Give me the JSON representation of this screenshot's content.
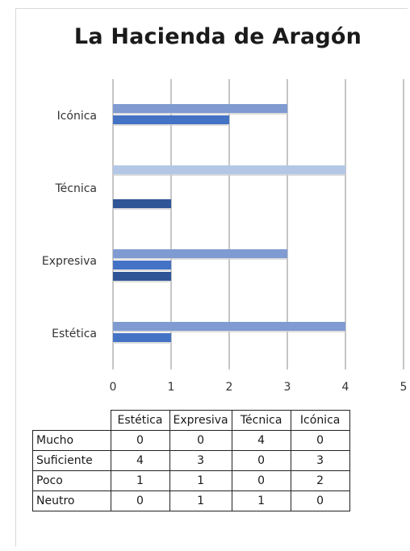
{
  "chart_data": {
    "type": "bar",
    "orientation": "horizontal",
    "title": "La Hacienda de Aragón",
    "categories": [
      "Estética",
      "Expresiva",
      "Técnica",
      "Icónica"
    ],
    "series": [
      {
        "name": "Mucho",
        "values": [
          0,
          0,
          4,
          0
        ],
        "color": "#b4c7e7"
      },
      {
        "name": "Suficiente",
        "values": [
          4,
          3,
          0,
          3
        ],
        "color": "#7f9bd1"
      },
      {
        "name": "Poco",
        "values": [
          1,
          1,
          0,
          2
        ],
        "color": "#4472c4"
      },
      {
        "name": "Neutro",
        "values": [
          0,
          1,
          1,
          0
        ],
        "color": "#2f5597"
      }
    ],
    "xlim": [
      0,
      5
    ],
    "xticks": [
      "0",
      "1",
      "2",
      "3",
      "4",
      "5"
    ],
    "grid": true,
    "legend": "data-table"
  }
}
